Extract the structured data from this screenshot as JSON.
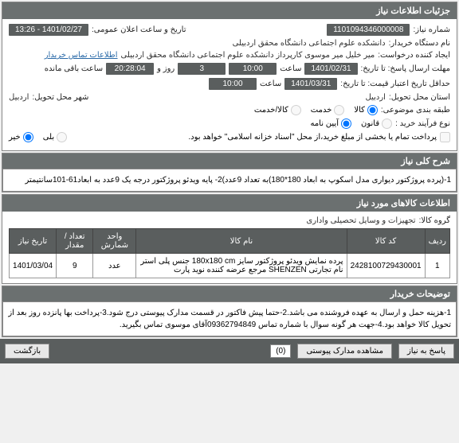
{
  "panel1": {
    "title": "جزئیات اطلاعات نیاز",
    "need_number_label": "شماره نیاز:",
    "need_number": "1101094346000008",
    "public_date_label": "تاریخ و ساعت اعلان عمومی:",
    "public_date": "1401/02/27 - 13:26",
    "buyer_dev_label": "نام دستگاه خریدار:",
    "buyer_dev": "دانشکده علوم اجتماعی دانشگاه محقق اردبیلی",
    "request_creator_label": "ایجاد کننده درخواست:",
    "request_creator": "میر خلیل میر موسوی کارپرداز دانشکده علوم اجتماعی دانشگاه محقق اردبیلی",
    "contact_link": "اطلاعات تماس خریدار",
    "response_deadline_label": "مهلت ارسال پاسخ: تا تاریخ:",
    "response_date": "1401/02/31",
    "time_label": "ساعت",
    "response_time": "10:00",
    "days_val": "3",
    "days_label": "روز و",
    "remain_time": "20:28:04",
    "remain_label": "ساعت باقی مانده",
    "min_valid_label": "حداقل تاریخ اعتبار قیمت: تا تاریخ:",
    "min_valid_date": "1401/03/31",
    "min_valid_time": "10:00",
    "delivery_loc_label": "استان محل تحویل:",
    "delivery_province": "اردبیل",
    "delivery_city_label": "شهر محل تحویل:",
    "delivery_city": "اردبیل",
    "group_label": "طبقه بندی موضوعی:",
    "group_goods": "کالا",
    "group_service": "خدمت",
    "group_both": "کالا/خدمت",
    "process_label": "نوع فرآیند خرید :",
    "process_rule1": "قانون",
    "process_rule2": "آیین نامه",
    "payment_note": "پرداخت تمام یا بخشی از مبلغ خرید،از محل \"اسناد خزانه اسلامی\" خواهد بود.",
    "payment_yes": "بلی",
    "payment_no": "خیر"
  },
  "desc1": {
    "title": "شرح کلی نیاز",
    "text": "1-(پرده پروژکتور دیواری مدل اسکوپ به ابعاد 180*180)به تعداد 9عدد)2- پایه ویدئو پروژکتور درجه یک 9عدد به ابعاد61-101سانتیمتر"
  },
  "panel2": {
    "title": "اطلاعات کالاهای مورد نیاز",
    "goods_group_label": "گروه کالا:",
    "goods_group": "تجهیزات و وسایل تحصیلی واداری",
    "cols": {
      "row": "ردیف",
      "code": "کد کالا",
      "name": "نام کالا",
      "unit": "واحد شمارش",
      "qty": "تعداد / مقدار",
      "date": "تاریخ نیاز"
    },
    "rows": [
      {
        "idx": "1",
        "code": "2428100729430001",
        "name": "پرده نمایش ویدئو پروژکتور سایز 180x180 cm جنس پلی استر نام تجارتی SHENZEN مرجع عرضه کننده نوید پارت",
        "unit": "عدد",
        "qty": "9",
        "date": "1401/03/04"
      }
    ]
  },
  "desc2": {
    "title": "توضیحات خریدار",
    "text": "1-هزینه حمل و ارسال به عهده فروشنده می باشد.2-حتما پیش فاکتور در قسمت مدارک پیوستی درج شود.3-پرداخت بها پانزده روز بعد از تحویل کالا خواهد بود.4-جهت هر گونه سوال با شماره تماس 09362794849آقای موسوی تماس بگیرید."
  },
  "footer": {
    "reply_btn": "پاسخ به نیاز",
    "view_attach_btn": "مشاهده مدارک پیوستی",
    "attach_count": "(0)",
    "back_btn": "بازگشت"
  }
}
